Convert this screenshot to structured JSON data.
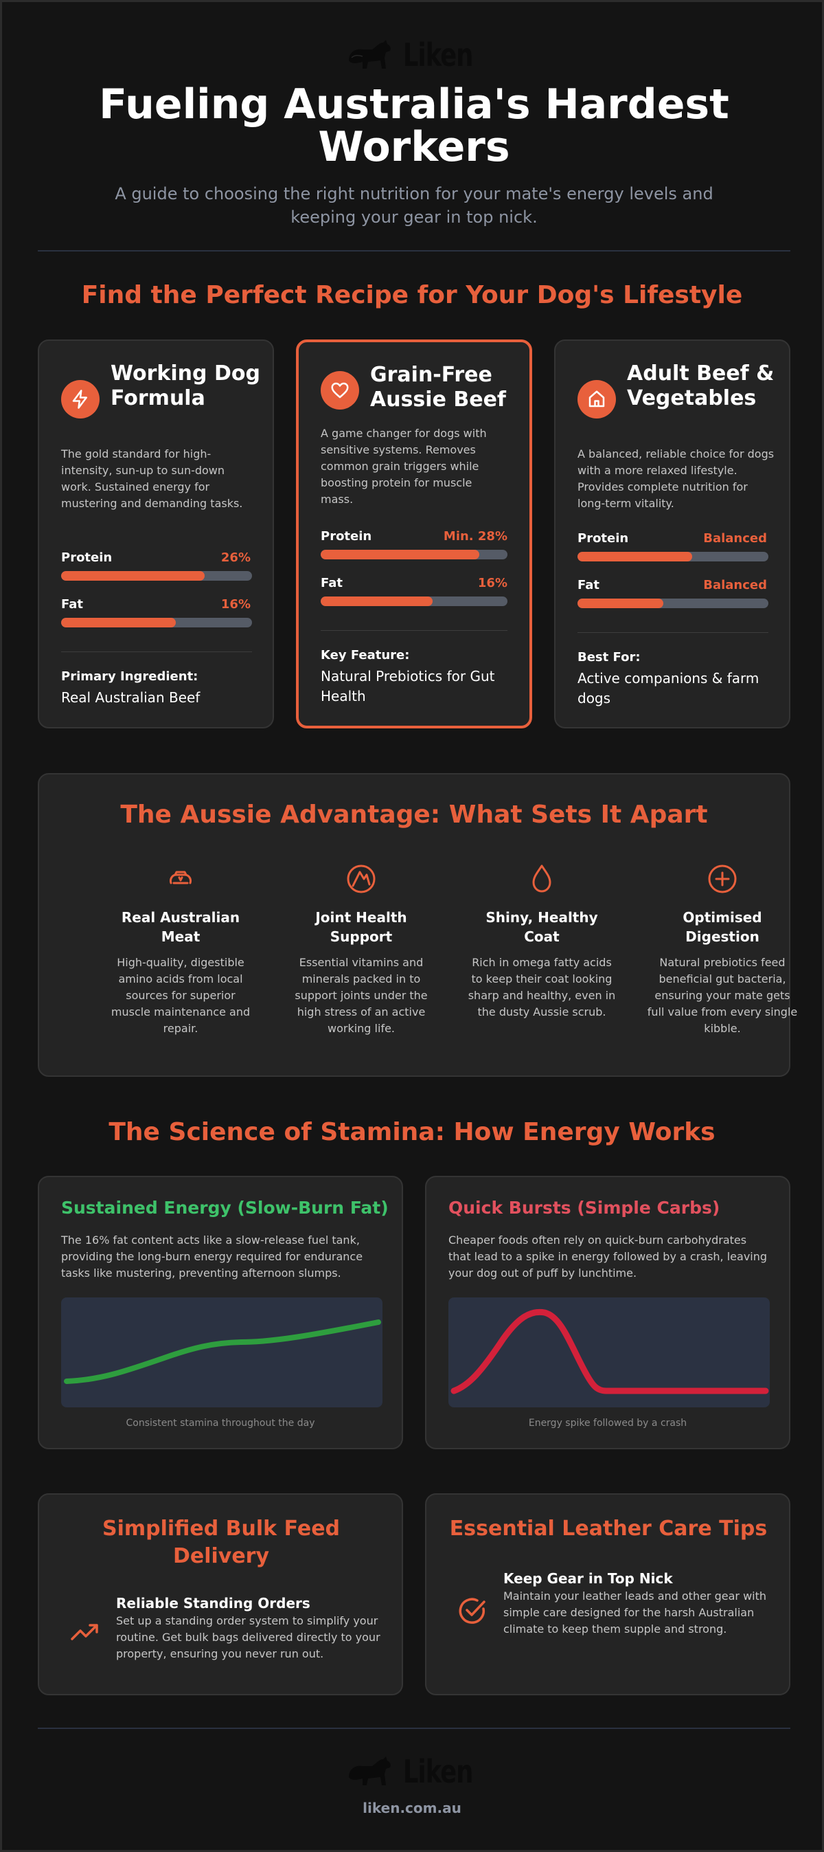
{
  "brand": {
    "logo_text": "Liken",
    "accent": "#e8603c"
  },
  "hero": {
    "title": "Fueling Australia's Hardest Workers",
    "subtitle": "A guide to choosing the right nutrition for your mate's energy levels and keeping your gear in top nick."
  },
  "recipes": {
    "section_title": "Find the Perfect Recipe for Your Dog's Lifestyle",
    "cards": [
      {
        "icon": "lightning-icon",
        "title": "Working Dog Formula",
        "description": "The gold standard for high-intensity, sun-up to sun-down work. Sustained energy for mustering and demanding tasks.",
        "protein_label": "Protein",
        "protein_value": "26%",
        "protein_level": 0.75,
        "fat_label": "Fat",
        "fat_value": "16%",
        "fat_level": 0.6,
        "footer_label": "Primary Ingredient:",
        "footer_value": "Real Australian Beef"
      },
      {
        "icon": "heart-icon",
        "title": "Grain-Free Aussie Beef",
        "description": "A game changer for dogs with sensitive systems. Removes common grain triggers while boosting protein for muscle mass.",
        "protein_label": "Protein",
        "protein_value": "Min. 28%",
        "protein_level": 0.85,
        "fat_label": "Fat",
        "fat_value": "16%",
        "fat_level": 0.6,
        "footer_label": "Key Feature:",
        "footer_value": "Natural Prebiotics for Gut Health"
      },
      {
        "icon": "home-icon",
        "title": "Adult Beef & Vegetables",
        "description": "A balanced, reliable choice for dogs with a more relaxed lifestyle. Provides complete nutrition for long-term vitality.",
        "protein_label": "Protein",
        "protein_value": "Balanced",
        "protein_level": 0.6,
        "fat_label": "Fat",
        "fat_value": "Balanced",
        "fat_level": 0.45,
        "footer_label": "Best For:",
        "footer_value": "Active companions & farm dogs"
      }
    ]
  },
  "advantage": {
    "title": "The Aussie Advantage: What Sets It Apart",
    "items": [
      {
        "icon": "muscle-icon",
        "name": "Real Australian Meat",
        "description": "High-quality, digestible amino acids from local sources for superior muscle maintenance and repair."
      },
      {
        "icon": "joint-icon",
        "name": "Joint Health Support",
        "description": "Essential vitamins and minerals packed in to support joints under the high stress of an active working life."
      },
      {
        "icon": "droplet-icon",
        "name": "Shiny, Healthy Coat",
        "description": "Rich in omega fatty acids to keep their coat looking sharp and healthy, even in the dusty Aussie scrub."
      },
      {
        "icon": "plus-circle-icon",
        "name": "Optimised Digestion",
        "description": "Natural prebiotics feed beneficial gut bacteria, ensuring your mate gets full value from every single kibble."
      }
    ]
  },
  "science": {
    "title": "The Science of Stamina: How Energy Works",
    "cards": [
      {
        "title": "Sustained Energy (Slow-Burn Fat)",
        "title_color": "#3ec26a",
        "description": "The 16% fat content acts like a slow-release fuel tank, providing the long-burn energy required for endurance tasks like mustering, preventing afternoon slumps.",
        "line_color": "#2e9e3e",
        "caption": "Consistent stamina throughout the day"
      },
      {
        "title": "Quick Bursts (Simple Carbs)",
        "title_color": "#e2515e",
        "description": "Cheaper foods often rely on quick-burn carbohydrates that lead to a spike in energy followed by a crash, leaving your dog out of puff by lunchtime.",
        "line_color": "#d3213a",
        "caption": "Energy spike followed by a crash"
      }
    ]
  },
  "bottom": {
    "delivery": {
      "title": "Simplified Bulk Feed Delivery",
      "icon": "trending-up-icon",
      "heading": "Reliable Standing Orders",
      "description": "Set up a standing order system to simplify your routine. Get bulk bags delivered directly to your property, ensuring you never run out."
    },
    "leather": {
      "title": "Essential Leather Care Tips",
      "icon": "check-circle-icon",
      "heading": "Keep Gear in Top Nick",
      "description": "Maintain your leather leads and other gear with simple care designed for the harsh Australian climate to keep them supple and strong."
    }
  },
  "footer": {
    "url": "liken.com.au"
  }
}
